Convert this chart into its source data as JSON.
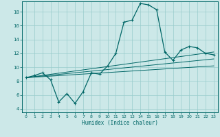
{
  "xlabel": "Humidex (Indice chaleur)",
  "xlim": [
    -0.5,
    23.5
  ],
  "ylim": [
    3.5,
    19.5
  ],
  "yticks": [
    4,
    6,
    8,
    10,
    12,
    14,
    16,
    18
  ],
  "xticks": [
    0,
    1,
    2,
    3,
    4,
    5,
    6,
    7,
    8,
    9,
    10,
    11,
    12,
    13,
    14,
    15,
    16,
    17,
    18,
    19,
    20,
    21,
    22,
    23
  ],
  "bg_color": "#cce8e8",
  "line_color": "#006666",
  "grid_color": "#99cccc",
  "line1_x": [
    0,
    1,
    2,
    3,
    4,
    5,
    6,
    7,
    8,
    9,
    10,
    11,
    12,
    13,
    14,
    15,
    16,
    17,
    18,
    19,
    20,
    21,
    22,
    23
  ],
  "line1_y": [
    8.5,
    8.8,
    9.2,
    8.2,
    5.0,
    6.2,
    4.8,
    6.5,
    9.2,
    9.0,
    10.2,
    12.0,
    16.5,
    16.8,
    19.2,
    19.0,
    18.3,
    12.2,
    11.0,
    12.5,
    13.0,
    12.8,
    12.0,
    11.8
  ],
  "line2_x": [
    0,
    23
  ],
  "line2_y": [
    8.5,
    10.2
  ],
  "line3_x": [
    0,
    23
  ],
  "line3_y": [
    8.5,
    11.2
  ],
  "line4_x": [
    0,
    23
  ],
  "line4_y": [
    8.5,
    12.2
  ]
}
